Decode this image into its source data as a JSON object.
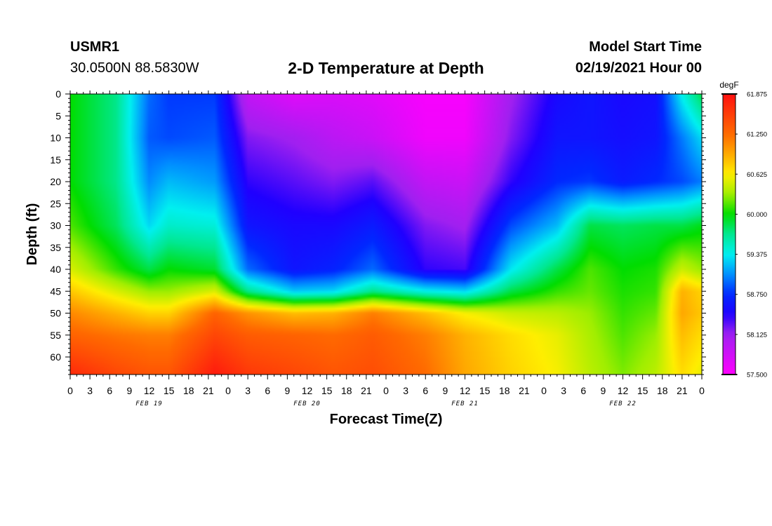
{
  "header": {
    "station": "USMR1",
    "coords": "30.0500N 88.5830W",
    "title": "2-D Temperature at Depth",
    "model_start_label": "Model Start Time",
    "model_start_value": "02/19/2021 Hour 00"
  },
  "chart_data": {
    "type": "heatmap",
    "title": "2-D Temperature at Depth",
    "xlabel": "Forecast Time(Z)",
    "ylabel": "Depth (ft)",
    "x_unit": "hours since 02/19/2021 00Z",
    "xlim": [
      0,
      96
    ],
    "ylim": [
      0,
      64
    ],
    "x_tick_values": [
      0,
      3,
      6,
      9,
      12,
      15,
      18,
      21,
      24,
      27,
      30,
      33,
      36,
      39,
      42,
      45,
      48,
      51,
      54,
      57,
      60,
      63,
      66,
      69,
      72,
      75,
      78,
      81,
      84,
      87,
      90,
      93,
      96
    ],
    "x_tick_labels": [
      "0",
      "3",
      "6",
      "9",
      "12",
      "15",
      "18",
      "21",
      "0",
      "3",
      "6",
      "9",
      "12",
      "15",
      "18",
      "21",
      "0",
      "3",
      "6",
      "9",
      "12",
      "15",
      "18",
      "21",
      "0",
      "3",
      "6",
      "9",
      "12",
      "15",
      "18",
      "21",
      "0"
    ],
    "date_labels": [
      {
        "hour": 12,
        "label": "FEB 19"
      },
      {
        "hour": 36,
        "label": "FEB 20"
      },
      {
        "hour": 60,
        "label": "FEB 21"
      },
      {
        "hour": 84,
        "label": "FEB 22"
      }
    ],
    "y_tick_values": [
      0,
      5,
      10,
      15,
      20,
      25,
      30,
      35,
      40,
      45,
      50,
      55,
      60
    ],
    "y_tick_labels": [
      "0",
      "5",
      "10",
      "15",
      "20",
      "25",
      "30",
      "35",
      "40",
      "45",
      "50",
      "55",
      "60"
    ],
    "colorbar": {
      "unit": "degF",
      "min": 57.5,
      "max": 61.875,
      "tick_values": [
        61.875,
        61.25,
        60.625,
        60.0,
        59.375,
        58.75,
        58.125,
        57.5
      ],
      "tick_labels": [
        "61.875",
        "61.250",
        "60.625",
        "60.000",
        "59.375",
        "58.750",
        "58.125",
        "57.500"
      ],
      "colors": [
        {
          "v": 57.5,
          "c": "#ff00ff"
        },
        {
          "v": 58.125,
          "c": "#a020f0"
        },
        {
          "v": 58.4375,
          "c": "#2000ff"
        },
        {
          "v": 58.75,
          "c": "#0028ff"
        },
        {
          "v": 59.0625,
          "c": "#0090ff"
        },
        {
          "v": 59.375,
          "c": "#00f0f0"
        },
        {
          "v": 59.6875,
          "c": "#00e890"
        },
        {
          "v": 60.0,
          "c": "#00dd00"
        },
        {
          "v": 60.3125,
          "c": "#a0ee00"
        },
        {
          "v": 60.625,
          "c": "#ffee00"
        },
        {
          "v": 60.9375,
          "c": "#ffaa00"
        },
        {
          "v": 61.25,
          "c": "#ff6a00"
        },
        {
          "v": 61.875,
          "c": "#ff1010"
        }
      ]
    },
    "depth_profiles_ft": [
      0,
      10,
      20,
      30,
      40,
      45,
      50,
      55,
      64
    ],
    "profiles": [
      {
        "hour": 0,
        "temps": [
          60.0,
          60.0,
          60.0,
          60.15,
          60.5,
          60.8,
          61.1,
          61.3,
          61.7
        ]
      },
      {
        "hour": 7,
        "temps": [
          59.7,
          59.7,
          59.7,
          59.8,
          60.1,
          60.5,
          60.9,
          61.2,
          61.5
        ]
      },
      {
        "hour": 12,
        "temps": [
          58.95,
          58.9,
          59.05,
          59.3,
          59.85,
          60.3,
          60.75,
          61.15,
          61.4
        ]
      },
      {
        "hour": 15,
        "temps": [
          58.8,
          58.85,
          59.2,
          59.5,
          60.0,
          60.3,
          60.75,
          61.15,
          61.4
        ]
      },
      {
        "hour": 22,
        "temps": [
          58.8,
          58.9,
          59.1,
          59.45,
          59.9,
          60.5,
          61.3,
          61.5,
          61.8
        ]
      },
      {
        "hour": 27,
        "temps": [
          57.9,
          58.2,
          58.4,
          58.6,
          58.95,
          59.7,
          61.05,
          61.35,
          61.6
        ]
      },
      {
        "hour": 34,
        "temps": [
          57.7,
          58.1,
          58.3,
          58.5,
          58.6,
          59.25,
          60.85,
          61.3,
          61.5
        ]
      },
      {
        "hour": 40,
        "temps": [
          57.75,
          57.95,
          58.2,
          58.5,
          58.7,
          59.3,
          60.9,
          61.25,
          61.4
        ]
      },
      {
        "hour": 46,
        "temps": [
          57.7,
          57.85,
          58.3,
          58.65,
          58.95,
          59.7,
          61.15,
          61.35,
          61.45
        ]
      },
      {
        "hour": 54,
        "temps": [
          57.55,
          57.6,
          57.9,
          58.2,
          58.4,
          59.4,
          60.85,
          61.15,
          61.25
        ]
      },
      {
        "hour": 60,
        "temps": [
          57.55,
          57.6,
          57.85,
          58.1,
          58.35,
          59.3,
          60.6,
          60.9,
          60.95
        ]
      },
      {
        "hour": 67,
        "temps": [
          58.1,
          58.2,
          58.4,
          58.85,
          59.35,
          59.85,
          60.45,
          60.7,
          60.75
        ]
      },
      {
        "hour": 74,
        "temps": [
          58.5,
          58.6,
          58.75,
          59.2,
          59.85,
          60.1,
          60.4,
          60.55,
          60.6
        ]
      },
      {
        "hour": 79,
        "temps": [
          58.6,
          58.6,
          58.8,
          59.85,
          60.15,
          60.2,
          60.3,
          60.35,
          60.4
        ]
      },
      {
        "hour": 84,
        "temps": [
          58.5,
          58.55,
          58.65,
          59.8,
          60.0,
          60.05,
          60.1,
          60.15,
          60.25
        ]
      },
      {
        "hour": 89,
        "temps": [
          58.55,
          58.6,
          58.75,
          59.85,
          60.05,
          60.1,
          60.2,
          60.3,
          60.4
        ]
      },
      {
        "hour": 93,
        "temps": [
          59.4,
          59.0,
          58.85,
          59.85,
          60.45,
          60.9,
          60.95,
          60.85,
          60.7
        ]
      },
      {
        "hour": 96,
        "temps": [
          59.85,
          59.3,
          59.0,
          59.95,
          60.3,
          60.75,
          60.8,
          60.7,
          60.55
        ]
      }
    ]
  }
}
